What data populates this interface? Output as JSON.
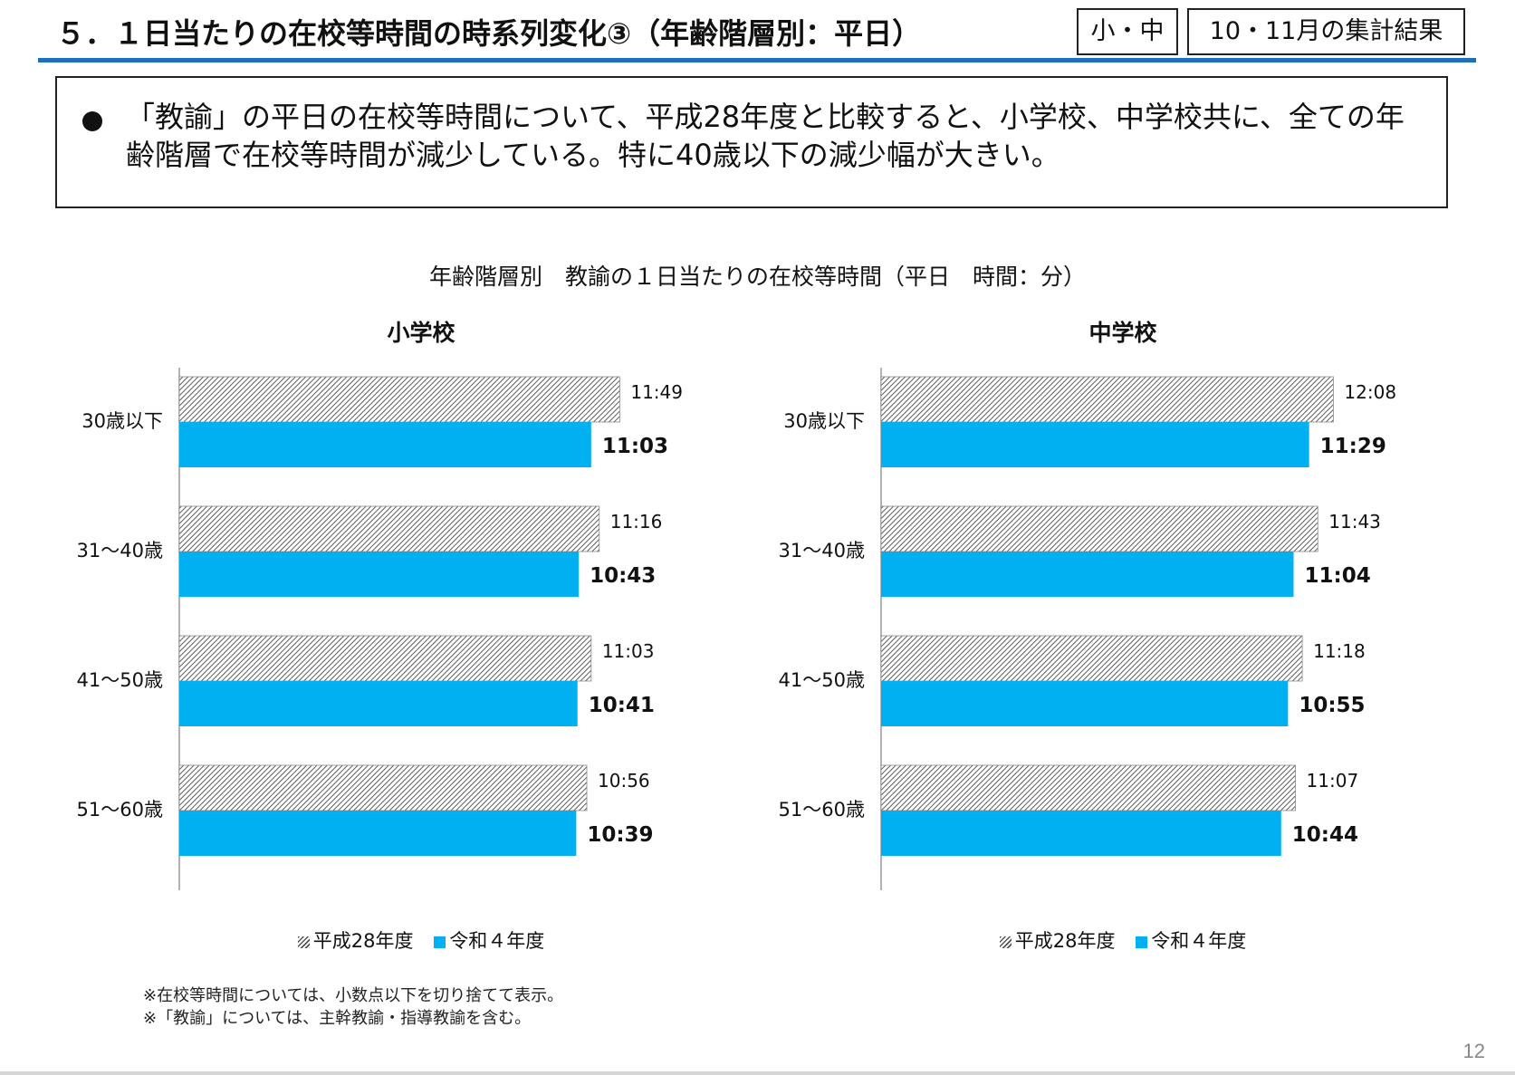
{
  "header": {
    "title": "５．１日当たりの在校等時間の時系列変化③（年齢階層別：平日）",
    "tag_level": "小・中",
    "tag_period": "10・11月の集計結果"
  },
  "summary": {
    "text": "「教諭」の平日の在校等時間について、平成28年度と比較すると、小学校、中学校共に、全ての年齢階層で在校等時間が減少している。特に40歳以下の減少幅が大きい。"
  },
  "chart_heading": "年齢階層別　教諭の１日当たりの在校等時間（平日　時間：分）",
  "legend": {
    "h28": "平成28年度",
    "r4": "令和４年度"
  },
  "colors": {
    "r4_bar": "#00b0f0",
    "title_rule": "#1f6fbf"
  },
  "chart_data": [
    {
      "type": "bar",
      "orientation": "horizontal",
      "title": "小学校",
      "categories": [
        "30歳以下",
        "31～40歳",
        "41～50歳",
        "51～60歳"
      ],
      "series": [
        {
          "name": "平成28年度",
          "style": "hatched",
          "values": [
            "11:49",
            "11:16",
            "11:03",
            "10:56"
          ]
        },
        {
          "name": "令和４年度",
          "style": "solid-blue",
          "values": [
            "11:03",
            "10:43",
            "10:41",
            "10:39"
          ]
        }
      ],
      "value_unit": "時間:分",
      "legend_position": "bottom",
      "grid": false
    },
    {
      "type": "bar",
      "orientation": "horizontal",
      "title": "中学校",
      "categories": [
        "30歳以下",
        "31～40歳",
        "41～50歳",
        "51～60歳"
      ],
      "series": [
        {
          "name": "平成28年度",
          "style": "hatched",
          "values": [
            "12:08",
            "11:43",
            "11:18",
            "11:07"
          ]
        },
        {
          "name": "令和４年度",
          "style": "solid-blue",
          "values": [
            "11:29",
            "11:04",
            "10:55",
            "10:44"
          ]
        }
      ],
      "value_unit": "時間:分",
      "legend_position": "bottom",
      "grid": false
    }
  ],
  "notes": [
    "※在校等時間については、小数点以下を切り捨てて表示。",
    "※「教諭」については、主幹教諭・指導教諭を含む。"
  ],
  "page_number": "12"
}
